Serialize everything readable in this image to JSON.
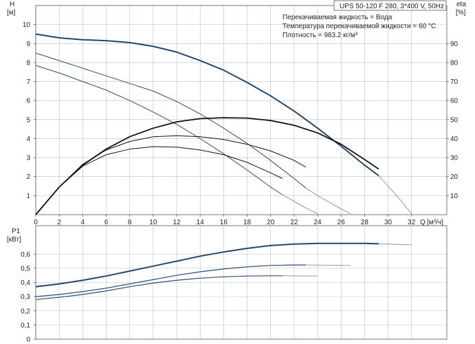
{
  "chart_data": [
    {
      "type": "line",
      "panel": "head-efficiency",
      "title": "UPS 50-120 F 280, 3*400 V, 50Hz",
      "info_lines": [
        "Перекачиваемая жидкость = Вода",
        "Температура перекачиваемой жидкости = 60 °C",
        "Плотность = 983.2 кг/м³"
      ],
      "ylabel": "H",
      "yunit": "[м]",
      "y2label": "eta",
      "y2unit": "[%]",
      "xlabel": "Q",
      "xunit": "[м³/ч]",
      "xlim": [
        0,
        35
      ],
      "ylim": [
        0,
        11
      ],
      "y2lim": [
        0,
        110
      ],
      "x_ticks": [
        "0",
        "2",
        "4",
        "6",
        "8",
        "10",
        "12",
        "14",
        "16",
        "18",
        "20",
        "22",
        "24",
        "26",
        "28",
        "30",
        "32"
      ],
      "y_ticks": [
        "1",
        "2",
        "3",
        "4",
        "5",
        "6",
        "7",
        "8",
        "9",
        "10"
      ],
      "y2_ticks": [
        "10",
        "20",
        "30",
        "40",
        "50",
        "60",
        "70",
        "80",
        "90"
      ],
      "grid": true,
      "colors": {
        "head": "#2a4a78",
        "head_main": "#23466f",
        "eta": "#111111",
        "tail": "#8a8a8a"
      },
      "head_curves": [
        {
          "x": [
            0,
            2,
            4,
            6,
            8,
            10,
            12,
            14,
            16,
            18,
            20,
            22,
            24,
            26,
            28,
            29.2
          ],
          "y": [
            9.5,
            9.3,
            9.2,
            9.15,
            9.05,
            8.85,
            8.55,
            8.1,
            7.6,
            6.95,
            6.25,
            5.45,
            4.55,
            3.6,
            2.6,
            2.05
          ],
          "tail_x": [
            29.2,
            30,
            31,
            32
          ],
          "tail_y": [
            2.05,
            1.5,
            0.8,
            0.05
          ]
        },
        {
          "x": [
            0,
            2,
            4,
            6,
            8,
            10,
            12,
            14,
            16,
            18,
            20,
            22,
            23
          ],
          "y": [
            8.5,
            8.1,
            7.7,
            7.3,
            6.9,
            6.5,
            5.95,
            5.3,
            4.55,
            3.75,
            2.85,
            1.9,
            1.4
          ],
          "tail_x": [
            23,
            24,
            25,
            26,
            26.8
          ],
          "tail_y": [
            1.4,
            1.0,
            0.65,
            0.3,
            0.05
          ]
        },
        {
          "x": [
            0,
            2,
            4,
            6,
            8,
            10,
            12,
            14,
            16,
            18,
            20,
            21
          ],
          "y": [
            7.85,
            7.45,
            7.0,
            6.55,
            6.0,
            5.4,
            4.75,
            4.0,
            3.2,
            2.35,
            1.45,
            1.05
          ],
          "tail_x": [
            21,
            22,
            23,
            24
          ],
          "tail_y": [
            1.05,
            0.7,
            0.35,
            0.05
          ]
        }
      ],
      "eta_curves": [
        {
          "x": [
            0,
            2,
            4,
            6,
            8,
            10,
            12,
            14,
            16,
            18,
            20,
            22,
            24,
            26,
            28,
            29.2
          ],
          "y": [
            0,
            14.5,
            26,
            34.5,
            41,
            45.5,
            48.8,
            50.5,
            51,
            50.8,
            49.5,
            47,
            43,
            37,
            29,
            24
          ]
        },
        {
          "x": [
            0,
            2,
            4,
            6,
            8,
            10,
            12,
            14,
            16,
            18,
            20,
            22,
            23
          ],
          "y": [
            0,
            14.5,
            26.5,
            34,
            38.5,
            41,
            41.5,
            41,
            39.5,
            37,
            33.5,
            28.5,
            25
          ]
        },
        {
          "x": [
            0,
            2,
            4,
            6,
            8,
            10,
            12,
            14,
            16,
            18,
            20,
            21
          ],
          "y": [
            0,
            14.5,
            25.5,
            31.5,
            34.5,
            35.8,
            35.5,
            34,
            31.5,
            27.5,
            22,
            19
          ]
        }
      ]
    },
    {
      "type": "line",
      "panel": "power",
      "ylabel": "P1",
      "yunit": "[кВт]",
      "xlim": [
        0,
        35
      ],
      "ylim": [
        0,
        0.8
      ],
      "y_ticks": [
        "0",
        "0,1",
        "0,2",
        "0,3",
        "0,4",
        "0,5",
        "0,6"
      ],
      "y_tick_values": [
        0,
        0.1,
        0.2,
        0.3,
        0.4,
        0.5,
        0.6
      ],
      "grid": true,
      "series": [
        {
          "x": [
            0,
            2,
            4,
            6,
            8,
            10,
            12,
            14,
            16,
            18,
            20,
            22,
            24,
            26,
            28,
            29.2
          ],
          "y": [
            0.37,
            0.39,
            0.415,
            0.445,
            0.48,
            0.515,
            0.55,
            0.585,
            0.615,
            0.64,
            0.66,
            0.67,
            0.675,
            0.675,
            0.675,
            0.672
          ],
          "tail_x": [
            29.2,
            32
          ],
          "tail_y": [
            0.672,
            0.665
          ]
        },
        {
          "x": [
            0,
            2,
            4,
            6,
            8,
            10,
            12,
            14,
            16,
            18,
            20,
            22,
            23
          ],
          "y": [
            0.3,
            0.315,
            0.335,
            0.36,
            0.39,
            0.42,
            0.45,
            0.475,
            0.495,
            0.51,
            0.52,
            0.523,
            0.523
          ],
          "tail_x": [
            23,
            26.8
          ],
          "tail_y": [
            0.523,
            0.52
          ]
        },
        {
          "x": [
            0,
            2,
            4,
            6,
            8,
            10,
            12,
            14,
            16,
            18,
            20,
            21
          ],
          "y": [
            0.28,
            0.295,
            0.315,
            0.34,
            0.37,
            0.395,
            0.415,
            0.43,
            0.44,
            0.445,
            0.447,
            0.447
          ],
          "tail_x": [
            21,
            24
          ],
          "tail_y": [
            0.447,
            0.445
          ]
        }
      ]
    }
  ]
}
